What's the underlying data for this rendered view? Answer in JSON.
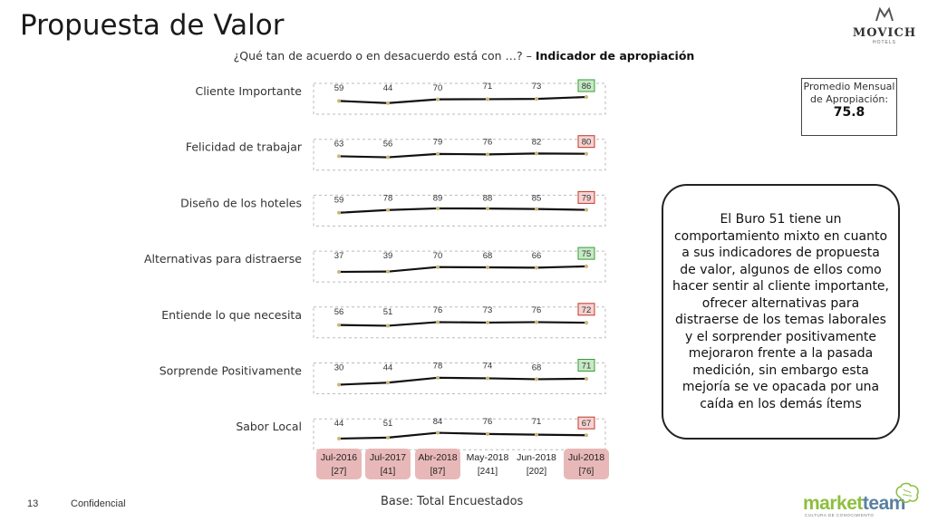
{
  "page": {
    "title": "Propuesta de Valor",
    "subtitle_prefix": "¿Qué tan de acuerdo o en desacuerdo está con …? –",
    "subtitle_bold": "Indicador de apropiación",
    "logo_name": "MOVICH",
    "logo_sub": "HOTELS",
    "avg_label": "Promedio Mensual de Apropiación:",
    "avg_value": "75.8",
    "callout": "El Buro 51 tiene un comportamiento mixto en cuanto a sus indicadores de propuesta de valor, algunos de ellos como hacer sentir al cliente importante, ofrecer alternativas para distraerse de los temas laborales y el sorprender positivamente mejoraron frente a la pasada medición, sin embargo esta mejoría se ve opacada por una caída en los demás ítems",
    "page_number": "13",
    "confidential": "Confidencial",
    "base": "Base: Total Encuestados",
    "mt_brand_a": "market",
    "mt_brand_b": "team",
    "mt_sub": "CULTURA DE CONOCIMIENTO"
  },
  "colors": {
    "line": "#111111",
    "marker": "#c8b87a",
    "band_border": "#bbbbbb",
    "up_fill": "#c6e9c6",
    "up_border": "#3a9a3a",
    "down_fill": "#f6d2d2",
    "down_border": "#c0392b",
    "period_highlight": "#e8b8b8"
  },
  "chart_data": {
    "type": "line",
    "periods": [
      {
        "label": "Jul-2016",
        "n": "[27]",
        "highlight": true
      },
      {
        "label": "Jul-2017",
        "n": "[41]",
        "highlight": true
      },
      {
        "label": "Abr-2018",
        "n": "[87]",
        "highlight": true
      },
      {
        "label": "May-2018",
        "n": "[241]",
        "highlight": false
      },
      {
        "label": "Jun-2018",
        "n": "[202]",
        "highlight": false
      },
      {
        "label": "Jul-2018",
        "n": "[76]",
        "highlight": true
      }
    ],
    "series": [
      {
        "name": "Cliente Importante",
        "values": [
          59,
          44,
          70,
          71,
          73,
          86
        ],
        "trend": "up"
      },
      {
        "name": "Felicidad de trabajar",
        "values": [
          63,
          56,
          79,
          76,
          82,
          80
        ],
        "trend": "down"
      },
      {
        "name": "Diseño de los hoteles",
        "values": [
          59,
          78,
          89,
          88,
          85,
          79
        ],
        "trend": "down"
      },
      {
        "name": "Alternativas para distraerse",
        "values": [
          37,
          39,
          70,
          68,
          66,
          75
        ],
        "trend": "up"
      },
      {
        "name": "Entiende lo que necesita",
        "values": [
          56,
          51,
          76,
          73,
          76,
          72
        ],
        "trend": "down"
      },
      {
        "name": "Sorprende Positivamente",
        "values": [
          30,
          44,
          78,
          74,
          68,
          71
        ],
        "trend": "up"
      },
      {
        "name": "Sabor Local",
        "values": [
          44,
          51,
          84,
          76,
          71,
          67
        ],
        "trend": "down"
      }
    ]
  }
}
